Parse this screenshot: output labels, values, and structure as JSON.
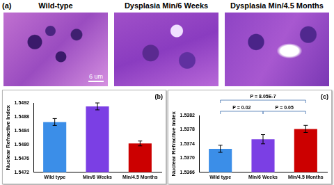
{
  "chart_data": [
    {
      "type": "bar",
      "categories": [
        "Wild type",
        "Min/6 Weeks",
        "Min/4.5 Months"
      ],
      "values": [
        1.54865,
        1.5491,
        1.54803
      ],
      "errors": [
        0.0001,
        0.0001,
        7e-05
      ],
      "colors": [
        "#3b8ee8",
        "#7b3fe4",
        "#cc0000"
      ],
      "y_label": "Nuclear Refractive Index",
      "ylim": [
        1.5472,
        1.5492
      ],
      "yticks": [
        1.5472,
        1.5476,
        {
          "value": 1.548,
          "label": "1.5480"
        },
        1.5484,
        1.5488,
        1.5492
      ],
      "grid": false,
      "annotations": [
        {
          "text": "(b)"
        }
      ]
    },
    {
      "type": "bar",
      "categories": [
        "Wild type",
        "Min/6 Weeks",
        "Min/4.5 Months"
      ],
      "values": [
        1.53726,
        1.53753,
        1.53782
      ],
      "errors": [
        0.0001,
        0.00013,
        0.0001
      ],
      "colors": [
        "#3b8ee8",
        "#7b3fe4",
        "#cc0000"
      ],
      "y_label": "Nuclear Refractive Index",
      "ylim": [
        1.5366,
        1.5382
      ],
      "yticks": [
        1.5366,
        {
          "value": 1.537,
          "label": "1.5370"
        },
        1.5374,
        1.5378,
        1.5382
      ],
      "grid": false,
      "annotations": [
        {
          "text": "(c)"
        },
        {
          "text": "P = 8.05E-7",
          "between": [
            "Wild type",
            "Min/4.5 Months"
          ]
        },
        {
          "text": "P = 0.02",
          "between": [
            "Wild type",
            "Min/6 Weeks"
          ]
        },
        {
          "text": "P = 0.05",
          "between": [
            "Min/6 Weeks",
            "Min/4.5 Months"
          ]
        }
      ]
    }
  ],
  "panel_a": {
    "label": "(a)",
    "images": [
      "Wild-type",
      "Dysplasia Min/6 Weeks",
      "Dysplasia Min/4.5 Months"
    ],
    "scale_bar": "6 um"
  }
}
